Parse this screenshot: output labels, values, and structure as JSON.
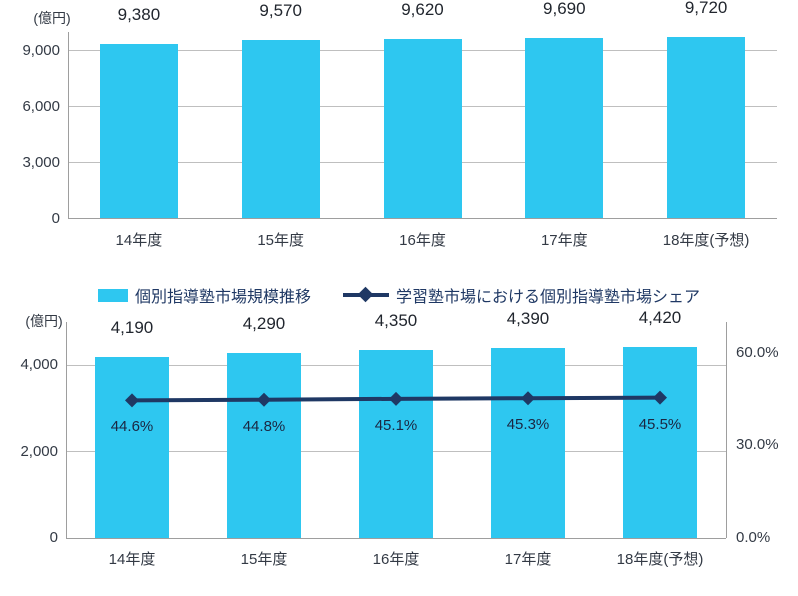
{
  "colors": {
    "bar": "#2ec7f0",
    "line": "#1f3864",
    "grid": "#bfbfbf",
    "axis": "#9e9e9e",
    "value_text": "#21262e",
    "pct_text": "#1b2742"
  },
  "chart_data": [
    {
      "type": "bar",
      "title": "",
      "unit_label": "(億円)",
      "categories": [
        "14年度",
        "15年度",
        "16年度",
        "17年度",
        "18年度(予想)"
      ],
      "values": [
        9380,
        9570,
        9620,
        9690,
        9720
      ],
      "value_labels": [
        "9,380",
        "9,570",
        "9,620",
        "9,690",
        "9,720"
      ],
      "bar_color": "#2ec7f0",
      "ylim": [
        0,
        10000
      ],
      "yticks": [
        {
          "v": 0,
          "label": "0"
        },
        {
          "v": 3000,
          "label": "3,000"
        },
        {
          "v": 6000,
          "label": "6,000"
        },
        {
          "v": 9000,
          "label": "9,000"
        }
      ],
      "grid": true,
      "legend_position": "none"
    },
    {
      "type": "bar",
      "title": "",
      "unit_label": "(億円)",
      "categories": [
        "14年度",
        "15年度",
        "16年度",
        "17年度",
        "18年度(予想)"
      ],
      "series": [
        {
          "name": "個別指導塾市場規模推移",
          "type": "bar",
          "axis": "left",
          "color": "#2ec7f0",
          "values": [
            4190,
            4290,
            4350,
            4390,
            4420
          ],
          "value_labels": [
            "4,190",
            "4,290",
            "4,350",
            "4,390",
            "4,420"
          ]
        },
        {
          "name": "学習塾市場における個別指導塾市場シェア",
          "type": "line",
          "axis": "right",
          "color": "#1f3864",
          "marker": "diamond",
          "values": [
            44.6,
            44.8,
            45.1,
            45.3,
            45.5
          ],
          "value_labels": [
            "44.6%",
            "44.8%",
            "45.1%",
            "45.3%",
            "45.5%"
          ]
        }
      ],
      "ylim_left": [
        0,
        5000
      ],
      "yticks_left": [
        {
          "v": 0,
          "label": "0"
        },
        {
          "v": 2000,
          "label": "2,000"
        },
        {
          "v": 4000,
          "label": "4,000"
        }
      ],
      "ylim_right": [
        0,
        70
      ],
      "yticks_right": [
        {
          "v": 0,
          "label": "0.0%"
        },
        {
          "v": 30,
          "label": "30.0%"
        },
        {
          "v": 60,
          "label": "60.0%"
        }
      ],
      "grid": true,
      "legend_position": "top"
    }
  ]
}
